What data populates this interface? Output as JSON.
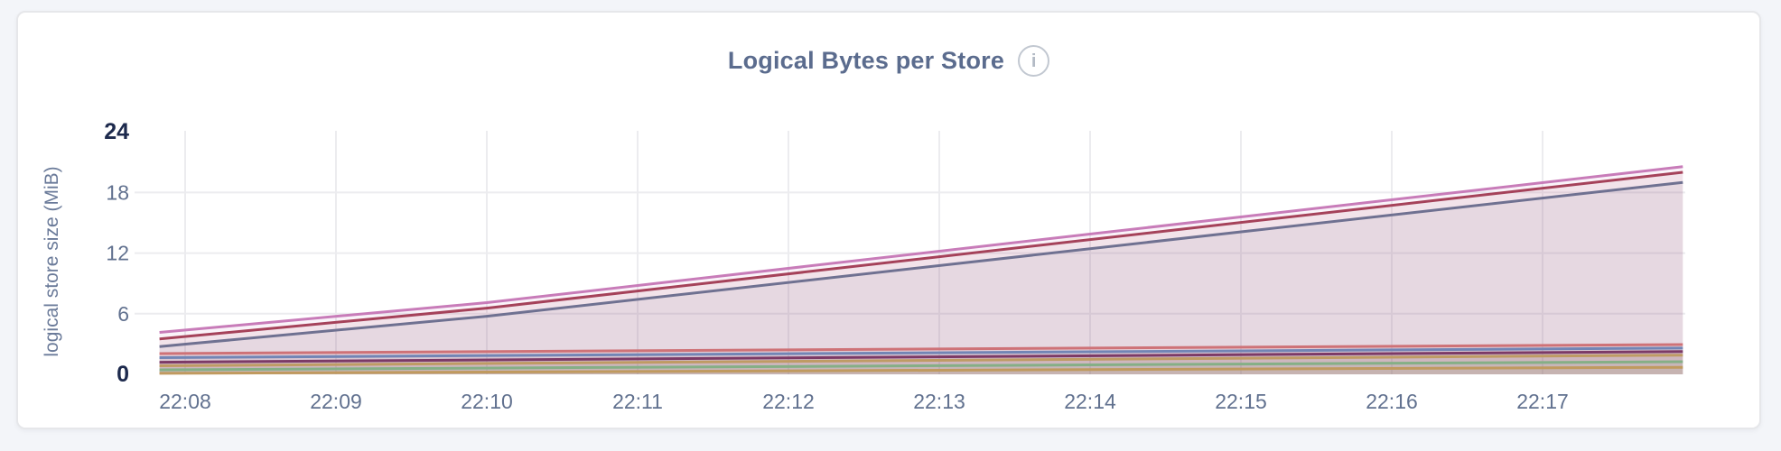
{
  "colors": {
    "page_background": "#F3F5F9",
    "card_background": "#FFFFFF",
    "card_border": "#E6E7EA",
    "title": "#5B6C8E",
    "info_icon": "#B3BAC5",
    "info_icon_border": "#C2C8D1",
    "axis_label": "#61718F",
    "axis_label_emphasis": "#1D2A4D",
    "axis_title": "#6A7A99",
    "grid": "#ECECEF"
  },
  "chart": {
    "info_icon_glyph": "i"
  },
  "chart_data": {
    "type": "area",
    "title": "Logical Bytes per Store",
    "xlabel": "",
    "ylabel": "logical store size (MiB)",
    "ylim": [
      0,
      24
    ],
    "grid": true,
    "legend": "none",
    "x_ticks": [
      "22:08",
      "22:09",
      "22:10",
      "22:11",
      "22:12",
      "22:13",
      "22:14",
      "22:15",
      "22:16",
      "22:17"
    ],
    "x_domain_minutes_from_first_tick": [
      -0.17,
      9.93
    ],
    "y_ticks": [
      {
        "label": "24",
        "value": 24,
        "emphasis": true,
        "gridline": false
      },
      {
        "label": "18",
        "value": 18,
        "emphasis": false,
        "gridline": true
      },
      {
        "label": "12",
        "value": 12,
        "emphasis": false,
        "gridline": true
      },
      {
        "label": "6",
        "value": 6,
        "emphasis": false,
        "gridline": true
      },
      {
        "label": "0",
        "value": 0,
        "emphasis": true,
        "gridline": false
      }
    ],
    "fill_opacity": 0.09,
    "line_width": 3,
    "series": [
      {
        "color": "#C87CB9",
        "points": [
          [
            -0.17,
            4.15
          ],
          [
            2.0,
            7.1
          ],
          [
            9.93,
            20.55
          ]
        ]
      },
      {
        "color": "#A5425A",
        "points": [
          [
            -0.17,
            3.5
          ],
          [
            2.0,
            6.55
          ],
          [
            9.93,
            20.0
          ]
        ]
      },
      {
        "color": "#6F7191",
        "points": [
          [
            -0.17,
            2.75
          ],
          [
            2.0,
            5.75
          ],
          [
            9.93,
            19.0
          ]
        ]
      },
      {
        "color": "#CE7277",
        "points": [
          [
            -0.17,
            2.05
          ],
          [
            9.93,
            2.95
          ]
        ]
      },
      {
        "color": "#7285B5",
        "points": [
          [
            -0.17,
            1.65
          ],
          [
            9.93,
            2.6
          ]
        ]
      },
      {
        "color": "#7C3A66",
        "points": [
          [
            -0.17,
            1.2
          ],
          [
            9.93,
            2.25
          ]
        ]
      },
      {
        "color": "#BF9B64",
        "points": [
          [
            -0.17,
            0.85
          ],
          [
            9.93,
            1.9
          ]
        ]
      },
      {
        "color": "#85AF86",
        "points": [
          [
            -0.17,
            0.45
          ],
          [
            9.93,
            1.25
          ]
        ]
      },
      {
        "color": "#C09A5F",
        "points": [
          [
            -0.17,
            0.1
          ],
          [
            9.93,
            0.7
          ]
        ]
      }
    ]
  }
}
